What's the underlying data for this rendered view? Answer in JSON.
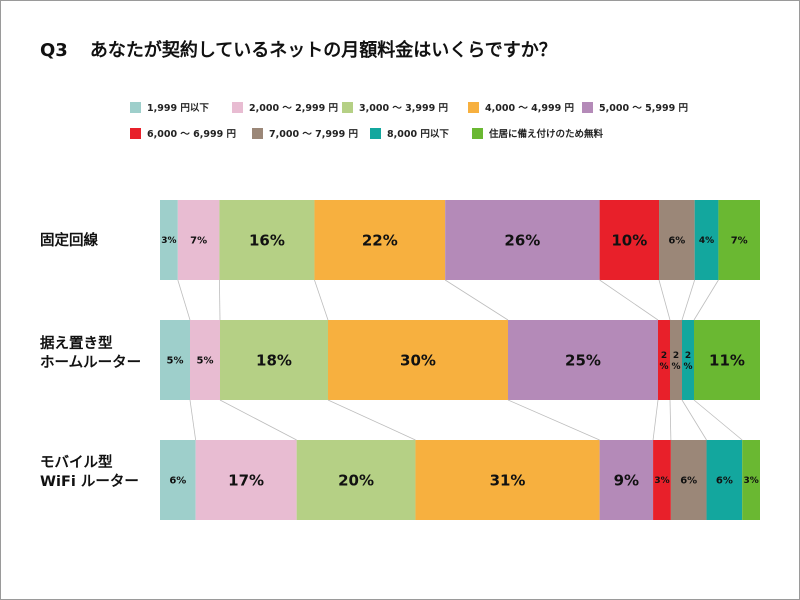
{
  "title": {
    "number": "Q3",
    "text": "あなたが契約しているネットの月額料金はいくらですか？"
  },
  "legend": [
    {
      "label": "1,999 円以下",
      "color": "#9ecfcb"
    },
    {
      "label": "2,000 ～ 2,999 円",
      "color": "#e8bcd2"
    },
    {
      "label": "3,000 ～ 3,999 円",
      "color": "#b5d085"
    },
    {
      "label": "4,000 ～ 4,999 円",
      "color": "#f7b03f"
    },
    {
      "label": "5,000 ～ 5,999 円",
      "color": "#b48ab8"
    },
    {
      "label": "6,000 ～ 6,999 円",
      "color": "#e8202a"
    },
    {
      "label": "7,000 ～ 7,999 円",
      "color": "#9b8778"
    },
    {
      "label": "8,000 円以下",
      "color": "#13a79e"
    },
    {
      "label": "住居に備え付けのため無料",
      "color": "#6ab832"
    }
  ],
  "chart_data": {
    "type": "bar",
    "orientation": "horizontal",
    "stacked": "100%",
    "title": "あなたが契約しているネットの月額料金はいくらですか？",
    "categories": [
      "固定回線",
      "据え置き型 ホームルーター",
      "モバイル型 WiFi ルーター"
    ],
    "category_lines": [
      [
        "固定回線"
      ],
      [
        "据え置き型",
        "ホームルーター"
      ],
      [
        "モバイル型",
        "WiFi ルーター"
      ]
    ],
    "series": [
      {
        "name": "1,999 円以下",
        "values": [
          3,
          5,
          6
        ]
      },
      {
        "name": "2,000 ～ 2,999 円",
        "values": [
          7,
          5,
          17
        ]
      },
      {
        "name": "3,000 ～ 3,999 円",
        "values": [
          16,
          18,
          20
        ]
      },
      {
        "name": "4,000 ～ 4,999 円",
        "values": [
          22,
          30,
          31
        ]
      },
      {
        "name": "5,000 ～ 5,999 円",
        "values": [
          26,
          25,
          9
        ]
      },
      {
        "name": "6,000 ～ 6,999 円",
        "values": [
          10,
          2,
          3
        ]
      },
      {
        "name": "7,000 ～ 7,999 円",
        "values": [
          6,
          2,
          6
        ]
      },
      {
        "name": "8,000 円以下",
        "values": [
          4,
          2,
          6
        ]
      },
      {
        "name": "住居に備え付けのため無料",
        "values": [
          7,
          11,
          3
        ]
      }
    ],
    "unit": "%",
    "legend_position": "top",
    "grid": false
  }
}
